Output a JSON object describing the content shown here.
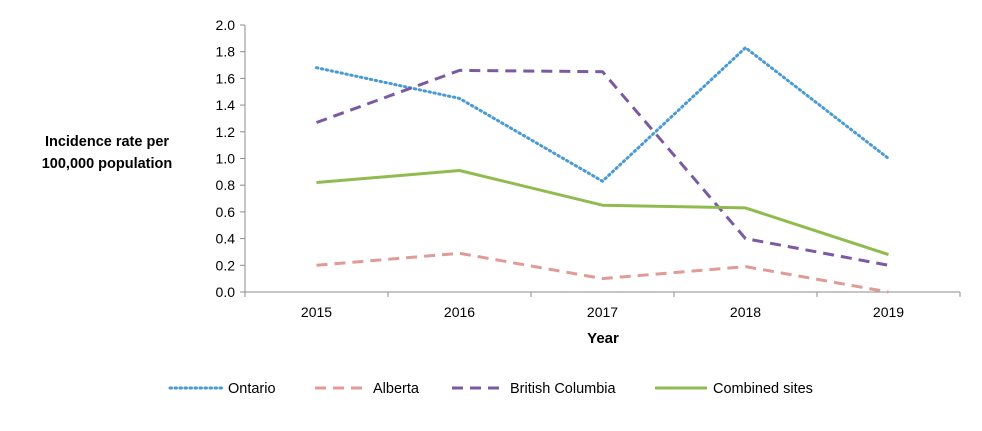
{
  "chart_data": {
    "type": "line",
    "xlabel": "Year",
    "ylabel_lines": [
      "Incidence rate per",
      "100,000 population"
    ],
    "categories": [
      "2015",
      "2016",
      "2017",
      "2018",
      "2019"
    ],
    "ylim": [
      0,
      2.0
    ],
    "yticks": [
      "0.0",
      "0.2",
      "0.4",
      "0.6",
      "0.8",
      "1.0",
      "1.2",
      "1.4",
      "1.6",
      "1.8",
      "2.0"
    ],
    "grid": false,
    "legend_position": "bottom",
    "series": [
      {
        "name": "Ontario",
        "values": [
          1.68,
          1.45,
          0.83,
          1.83,
          1.0
        ],
        "color": "#4a9bd4",
        "style": "dotted"
      },
      {
        "name": "Alberta",
        "values": [
          0.2,
          0.29,
          0.1,
          0.19,
          0.0
        ],
        "color": "#df9c96",
        "style": "dashed"
      },
      {
        "name": "British Columbia",
        "values": [
          1.27,
          1.66,
          1.65,
          0.4,
          0.2
        ],
        "color": "#7a5aa0",
        "style": "dashed"
      },
      {
        "name": "Combined sites",
        "values": [
          0.82,
          0.91,
          0.65,
          0.63,
          0.28
        ],
        "color": "#92bb4f",
        "style": "solid"
      }
    ]
  }
}
